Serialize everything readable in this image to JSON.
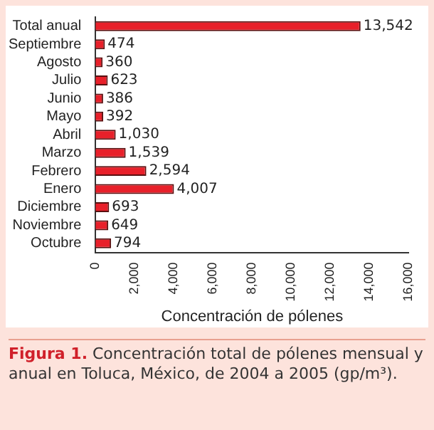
{
  "chart_data": {
    "type": "bar",
    "orientation": "horizontal",
    "xlabel": "Concentración de pólenes",
    "categories": [
      "Total anual",
      "Septiembre",
      "Agosto",
      "Julio",
      "Junio",
      "Mayo",
      "Abril",
      "Marzo",
      "Febrero",
      "Enero",
      "Diciembre",
      "Noviembre",
      "Octubre"
    ],
    "values": [
      13542,
      474,
      360,
      623,
      386,
      392,
      1030,
      1539,
      2594,
      4007,
      693,
      649,
      794
    ],
    "value_labels": [
      "13,542",
      "474",
      "360",
      "623",
      "386",
      "392",
      "1,030",
      "1,539",
      "2,594",
      "4,007",
      "693",
      "649",
      "794"
    ],
    "color": "#e8202a",
    "xlim": [
      0,
      16000
    ],
    "xticks": [
      {
        "value": 0,
        "label": "0"
      },
      {
        "value": 2000,
        "label": "2,000"
      },
      {
        "value": 4000,
        "label": "4,000"
      },
      {
        "value": 6000,
        "label": "6,000"
      },
      {
        "value": 8000,
        "label": "8,000"
      },
      {
        "value": 10000,
        "label": "10,000"
      },
      {
        "value": 12000,
        "label": "12,000"
      },
      {
        "value": 14000,
        "label": "14,000"
      },
      {
        "value": 16000,
        "label": "16,000"
      }
    ],
    "grid": false,
    "legend": false,
    "annotations": [
      "Figura 1.",
      "Concentración total de pólenes mensual y anual en Toluca, México, de 2004 a 2005 (gp/m³)."
    ]
  }
}
